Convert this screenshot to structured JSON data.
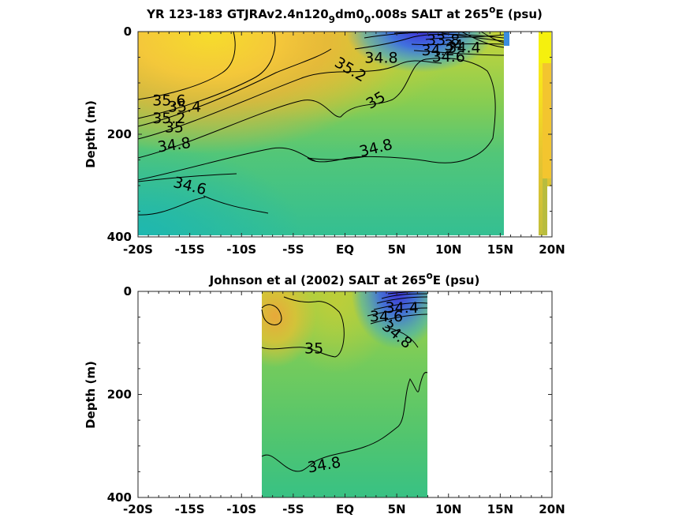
{
  "figure": {
    "panels": [
      {
        "title_main": "YR 123-183 GTJRAv2.4n120",
        "title_sub1": "9",
        "title_mid": "dm0",
        "title_sub2": "0",
        "title_end": ".008s SALT at 265",
        "title_sup": "o",
        "title_tail": "E (psu)"
      },
      {
        "title_main": "Johnson et al (2002) SALT at 265",
        "title_sup": "o",
        "title_tail": "E (psu)"
      }
    ]
  },
  "chart_data": [
    {
      "type": "heatmap",
      "title": "YR 123-183 GTJRAv2.4n120_9dm0_0.008s SALT at 265°E (psu)",
      "ylabel": "Depth (m)",
      "xlabel": "",
      "x_ticks": [
        "-20S",
        "-15S",
        "-10S",
        "-5S",
        "EQ",
        "5N",
        "10N",
        "15N",
        "20N"
      ],
      "x_tick_values": [
        -20,
        -15,
        -10,
        -5,
        0,
        5,
        10,
        15,
        20
      ],
      "y_ticks": [
        "0",
        "200",
        "400"
      ],
      "y_tick_values": [
        0,
        200,
        400
      ],
      "xlim": [
        -20,
        20
      ],
      "ylim": [
        400,
        0
      ],
      "data_extent_lat": [
        -20,
        15.5
      ],
      "colorbar_side_strip": true,
      "contour_labels": [
        {
          "text": "35.6",
          "lat": -17,
          "depth": 135
        },
        {
          "text": "35.4",
          "lat": -15.5,
          "depth": 148
        },
        {
          "text": "35.2",
          "lat": -17,
          "depth": 170
        },
        {
          "text": "35",
          "lat": -16.5,
          "depth": 188
        },
        {
          "text": "34.8",
          "lat": -16.5,
          "depth": 222
        },
        {
          "text": "34.6",
          "lat": -15,
          "depth": 302
        },
        {
          "text": "35.2",
          "lat": 0.5,
          "depth": 75
        },
        {
          "text": "34.8",
          "lat": 3.5,
          "depth": 52
        },
        {
          "text": "35",
          "lat": 3,
          "depth": 135
        },
        {
          "text": "34.8",
          "lat": 3,
          "depth": 228
        },
        {
          "text": "33.8",
          "lat": 9.5,
          "depth": 18
        },
        {
          "text": "34",
          "lat": 10.5,
          "depth": 28
        },
        {
          "text": "34.2",
          "lat": 9,
          "depth": 38
        },
        {
          "text": "34.4",
          "lat": 11.5,
          "depth": 32
        },
        {
          "text": "34.6",
          "lat": 10,
          "depth": 50
        }
      ]
    },
    {
      "type": "heatmap",
      "title": "Johnson et al (2002) SALT at 265°E (psu)",
      "ylabel": "Depth (m)",
      "xlabel": "",
      "x_ticks": [
        "-20S",
        "-15S",
        "-10S",
        "-5S",
        "EQ",
        "5N",
        "10N",
        "15N",
        "20N"
      ],
      "x_tick_values": [
        -20,
        -15,
        -10,
        -5,
        0,
        5,
        10,
        15,
        20
      ],
      "y_ticks": [
        "0",
        "200",
        "400"
      ],
      "y_tick_values": [
        0,
        200,
        400
      ],
      "xlim": [
        -20,
        20
      ],
      "ylim": [
        400,
        0
      ],
      "data_extent_lat": [
        -8,
        8
      ],
      "contour_labels": [
        {
          "text": "35",
          "lat": -3,
          "depth": 112
        },
        {
          "text": "34.4",
          "lat": 5.5,
          "depth": 33
        },
        {
          "text": "34.6",
          "lat": 4,
          "depth": 50
        },
        {
          "text": "34.8",
          "lat": 5,
          "depth": 85
        },
        {
          "text": "34.8",
          "lat": -2,
          "depth": 338
        }
      ]
    }
  ]
}
